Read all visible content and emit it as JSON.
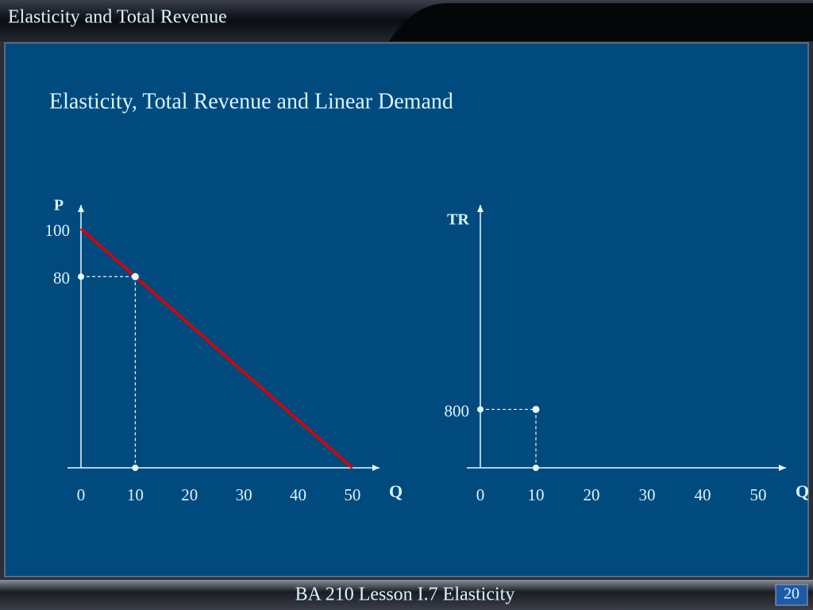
{
  "header": {
    "title": "Elasticity and Total Revenue"
  },
  "subtitle": "Elasticity, Total Revenue and Linear Demand",
  "chart_data": [
    {
      "type": "line",
      "x_label": "Q",
      "y_label": "P",
      "xlim": [
        0,
        55
      ],
      "ylim": [
        0,
        110
      ],
      "xticks": [
        0,
        10,
        20,
        30,
        40,
        50
      ],
      "yticks": [
        80,
        100
      ],
      "series": [
        {
          "color": "#e00000",
          "x": [
            0,
            50
          ],
          "values": [
            100,
            0
          ]
        }
      ],
      "highlight": {
        "x": 10,
        "y": 80
      }
    },
    {
      "type": "line",
      "x_label": "Q",
      "y_label": "TR",
      "xlim": [
        0,
        55
      ],
      "ylim": [
        0,
        3600
      ],
      "xticks": [
        0,
        10,
        20,
        30,
        40,
        50
      ],
      "yticks": [
        800
      ],
      "series": [],
      "highlight": {
        "x": 10,
        "y": 800
      }
    }
  ],
  "footer": {
    "text": "BA 210  Lesson I.7 Elasticity",
    "page": "20"
  }
}
